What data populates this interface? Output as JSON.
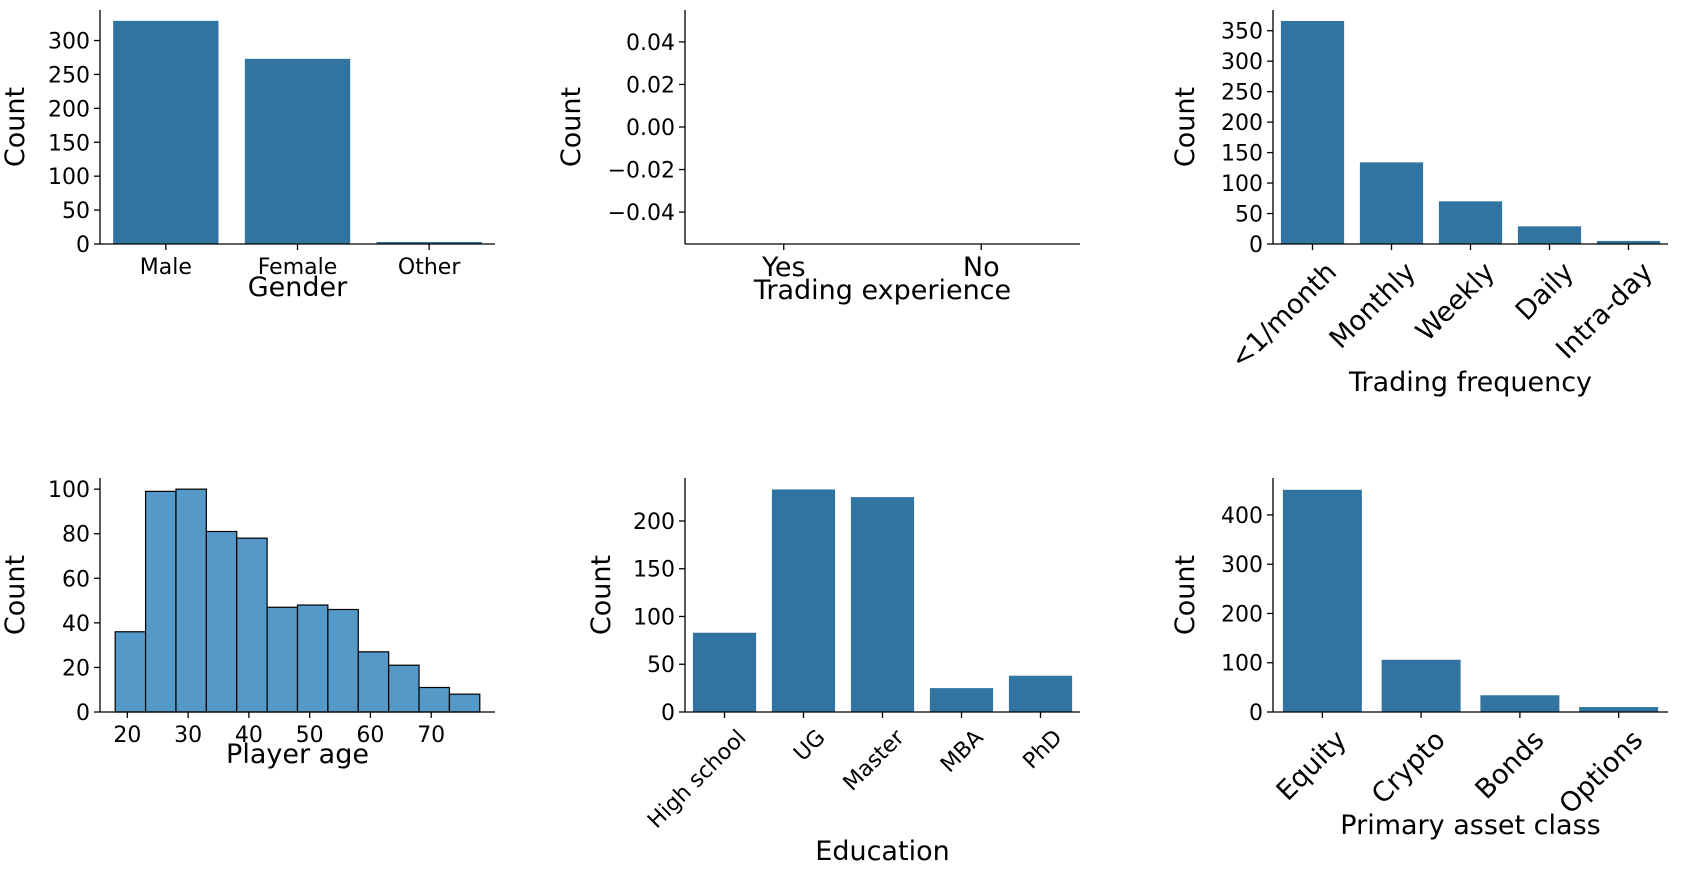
{
  "chart_data": [
    {
      "type": "bar",
      "xlabel": "Gender",
      "ylabel": "Count",
      "categories": [
        "Male",
        "Female",
        "Other"
      ],
      "values": [
        329,
        273,
        3
      ],
      "ylim": [
        0,
        345
      ],
      "yticks": [
        0,
        50,
        100,
        150,
        200,
        250,
        300
      ],
      "color": "#3274a1",
      "xtick_rotation": 0
    },
    {
      "type": "bar",
      "xlabel": "Trading experience",
      "ylabel": "Count",
      "categories": [
        "Yes",
        "No"
      ],
      "values": [
        0,
        0
      ],
      "ylim": [
        -0.055,
        0.055
      ],
      "yticks": [
        -0.04,
        -0.02,
        0.0,
        0.02,
        0.04
      ],
      "ytick_labels": [
        "−0.04",
        "−0.02",
        "0.00",
        "0.02",
        "0.04"
      ],
      "color": "#3274a1",
      "xtick_rotation": 0
    },
    {
      "type": "bar",
      "xlabel": "Trading frequency",
      "ylabel": "Count",
      "categories": [
        "<1/month",
        "Monthly",
        "Weekly",
        "Daily",
        "Intra-day"
      ],
      "values": [
        366,
        134,
        70,
        29,
        5
      ],
      "ylim": [
        0,
        384
      ],
      "yticks": [
        0,
        50,
        100,
        150,
        200,
        250,
        300,
        350
      ],
      "color": "#3274a1",
      "xtick_rotation": -45
    },
    {
      "type": "histogram",
      "xlabel": "Player age",
      "ylabel": "Count",
      "bin_edges": [
        18,
        23,
        28,
        33,
        38,
        43,
        48,
        53,
        58,
        63,
        68,
        73,
        78
      ],
      "values": [
        36,
        99,
        100,
        81,
        78,
        47,
        48,
        46,
        27,
        21,
        11,
        8
      ],
      "xlim": [
        15.5,
        80.5
      ],
      "xticks": [
        20,
        30,
        40,
        50,
        60,
        70
      ],
      "ylim": [
        0,
        105
      ],
      "yticks": [
        0,
        20,
        40,
        60,
        80,
        100
      ],
      "color": "#5599c8",
      "edgecolor": "#000000"
    },
    {
      "type": "bar",
      "xlabel": "Education",
      "ylabel": "Count",
      "categories": [
        "High school",
        "UG",
        "Master",
        "MBA",
        "PhD"
      ],
      "values": [
        83,
        233,
        225,
        25,
        38
      ],
      "ylim": [
        0,
        245
      ],
      "yticks": [
        0,
        50,
        100,
        150,
        200
      ],
      "color": "#3274a1",
      "xtick_rotation": -45
    },
    {
      "type": "bar",
      "xlabel": "Primary asset class",
      "ylabel": "Count",
      "categories": [
        "Equity",
        "Crypto",
        "Bonds",
        "Options"
      ],
      "values": [
        451,
        106,
        34,
        10
      ],
      "ylim": [
        0,
        475
      ],
      "yticks": [
        0,
        100,
        200,
        300,
        400
      ],
      "color": "#3274a1",
      "xtick_rotation": -45
    }
  ]
}
